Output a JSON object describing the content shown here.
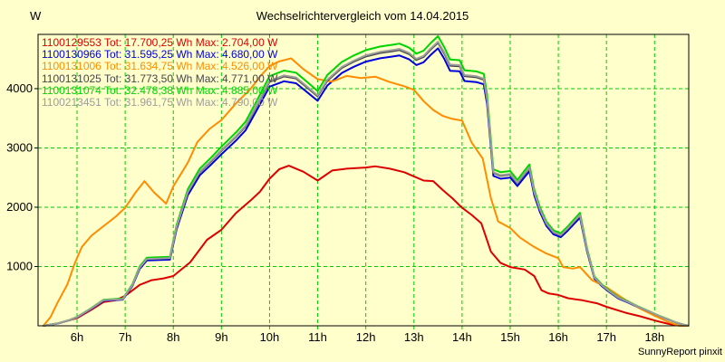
{
  "window": {
    "title": "Wechselrichtervergleich vom 14.04.2015",
    "footer_credit": "SunnyReport pinxit"
  },
  "colors": {
    "background": "#ffffcc",
    "grid": "#00cc00",
    "axis": "#000000",
    "text": "#000000"
  },
  "chart_data": {
    "type": "line",
    "title": "Wechselrichtervergleich vom 14.04.2015",
    "xlabel": "",
    "ylabel": "W",
    "x_unit": "h",
    "xlim": [
      5.19,
      18.71
    ],
    "ylim": [
      0,
      4915
    ],
    "grid": "dashed",
    "legend_position": "top-left-inside",
    "x_ticks": [
      [
        6,
        "6h"
      ],
      [
        7,
        "7h"
      ],
      [
        8,
        "8h"
      ],
      [
        9,
        "9h"
      ],
      [
        10,
        "10h"
      ],
      [
        11,
        "11h"
      ],
      [
        12,
        "12h"
      ],
      [
        13,
        "13h"
      ],
      [
        14,
        "14h"
      ],
      [
        15,
        "15h"
      ],
      [
        16,
        "16h"
      ],
      [
        17,
        "17h"
      ],
      [
        18,
        "18h"
      ]
    ],
    "y_ticks": [
      [
        1000,
        "1000"
      ],
      [
        2000,
        "2000"
      ],
      [
        3000,
        "3000"
      ],
      [
        4000,
        "4000"
      ]
    ],
    "series": [
      {
        "id": "1100129553",
        "label": "1100129553 Tot: 17.700,25 Wh Max: 2.704,00 W",
        "total_wh": "17.700,25",
        "max_w": "2.704,00",
        "color": "#dd0000",
        "points": [
          [
            5.3,
            0
          ],
          [
            5.6,
            40
          ],
          [
            6.0,
            130
          ],
          [
            6.3,
            270
          ],
          [
            6.55,
            400
          ],
          [
            6.8,
            430
          ],
          [
            7.0,
            505
          ],
          [
            7.3,
            690
          ],
          [
            7.55,
            770
          ],
          [
            7.8,
            800
          ],
          [
            8.0,
            840
          ],
          [
            8.35,
            1070
          ],
          [
            8.7,
            1450
          ],
          [
            9.0,
            1620
          ],
          [
            9.3,
            1900
          ],
          [
            9.6,
            2110
          ],
          [
            9.8,
            2260
          ],
          [
            10.0,
            2480
          ],
          [
            10.2,
            2640
          ],
          [
            10.4,
            2700
          ],
          [
            10.7,
            2600
          ],
          [
            11.0,
            2450
          ],
          [
            11.3,
            2620
          ],
          [
            11.6,
            2650
          ],
          [
            12.0,
            2670
          ],
          [
            12.2,
            2690
          ],
          [
            12.5,
            2650
          ],
          [
            12.8,
            2590
          ],
          [
            13.0,
            2520
          ],
          [
            13.2,
            2450
          ],
          [
            13.4,
            2440
          ],
          [
            13.6,
            2290
          ],
          [
            13.8,
            2150
          ],
          [
            14.0,
            1990
          ],
          [
            14.2,
            1870
          ],
          [
            14.4,
            1730
          ],
          [
            14.6,
            1250
          ],
          [
            14.8,
            1060
          ],
          [
            15.0,
            990
          ],
          [
            15.3,
            950
          ],
          [
            15.5,
            840
          ],
          [
            15.65,
            600
          ],
          [
            15.8,
            545
          ],
          [
            16.0,
            520
          ],
          [
            16.2,
            465
          ],
          [
            16.5,
            430
          ],
          [
            16.8,
            380
          ],
          [
            17.0,
            320
          ],
          [
            17.4,
            220
          ],
          [
            17.7,
            160
          ],
          [
            18.0,
            90
          ],
          [
            18.3,
            30
          ],
          [
            18.5,
            5
          ],
          [
            18.7,
            0
          ]
        ]
      },
      {
        "id": "1100130966",
        "label": "1100130966 Tot: 31.595,25 Wh Max: 4.680,00 W",
        "total_wh": "31.595,25",
        "max_w": "4.680,00",
        "color": "#0000dd",
        "base_id": "1100131074",
        "scale_of_base": 0.958
      },
      {
        "id": "1100131006",
        "label": "1100131006 Tot: 31.634,75 Wh Max: 4.526,00 W",
        "total_wh": "31.634,75",
        "max_w": "4.526,00",
        "color": "#ff8c00",
        "points": [
          [
            5.3,
            0
          ],
          [
            5.45,
            150
          ],
          [
            5.6,
            400
          ],
          [
            5.8,
            700
          ],
          [
            5.95,
            1050
          ],
          [
            6.1,
            1330
          ],
          [
            6.3,
            1520
          ],
          [
            6.55,
            1680
          ],
          [
            6.8,
            1840
          ],
          [
            7.0,
            1990
          ],
          [
            7.2,
            2230
          ],
          [
            7.4,
            2440
          ],
          [
            7.6,
            2250
          ],
          [
            7.85,
            2060
          ],
          [
            8.0,
            2350
          ],
          [
            8.3,
            2750
          ],
          [
            8.5,
            3100
          ],
          [
            8.75,
            3320
          ],
          [
            9.0,
            3470
          ],
          [
            9.3,
            3750
          ],
          [
            9.6,
            3990
          ],
          [
            9.8,
            4200
          ],
          [
            10.0,
            4380
          ],
          [
            10.2,
            4460
          ],
          [
            10.45,
            4510
          ],
          [
            10.7,
            4330
          ],
          [
            11.0,
            4160
          ],
          [
            11.3,
            4120
          ],
          [
            11.6,
            4215
          ],
          [
            11.9,
            4180
          ],
          [
            12.2,
            4200
          ],
          [
            12.5,
            4110
          ],
          [
            12.8,
            4040
          ],
          [
            13.0,
            3980
          ],
          [
            13.2,
            3790
          ],
          [
            13.4,
            3640
          ],
          [
            13.6,
            3540
          ],
          [
            13.8,
            3490
          ],
          [
            14.0,
            3460
          ],
          [
            14.2,
            3090
          ],
          [
            14.43,
            2820
          ],
          [
            14.6,
            2150
          ],
          [
            14.75,
            1760
          ],
          [
            15.0,
            1650
          ],
          [
            15.2,
            1490
          ],
          [
            15.5,
            1330
          ],
          [
            15.75,
            1220
          ],
          [
            16.0,
            1140
          ],
          [
            16.1,
            990
          ],
          [
            16.3,
            965
          ],
          [
            16.45,
            990
          ],
          [
            16.7,
            770
          ],
          [
            17.0,
            650
          ],
          [
            17.35,
            460
          ],
          [
            17.7,
            290
          ],
          [
            18.0,
            170
          ],
          [
            18.3,
            60
          ],
          [
            18.5,
            5
          ],
          [
            18.7,
            0
          ]
        ]
      },
      {
        "id": "1100131025",
        "label": "1100131025 Tot: 31.773,50 Wh Max: 4.771,00 W",
        "total_wh": "31.773,50",
        "max_w": "4.771,00",
        "color": "#45454d",
        "base_id": "1100131074",
        "scale_of_base": 0.977
      },
      {
        "id": "1100131074",
        "label": "1100131074 Tot: 32.478,38 Wh Max: 4.885,00 W",
        "total_wh": "32.478,38",
        "max_w": "4.885,00",
        "color": "#00d400",
        "points": [
          [
            5.3,
            0
          ],
          [
            5.6,
            40
          ],
          [
            5.85,
            100
          ],
          [
            6.0,
            150
          ],
          [
            6.3,
            300
          ],
          [
            6.55,
            440
          ],
          [
            6.95,
            460
          ],
          [
            7.15,
            700
          ],
          [
            7.3,
            1000
          ],
          [
            7.45,
            1150
          ],
          [
            7.93,
            1165
          ],
          [
            8.07,
            1700
          ],
          [
            8.3,
            2300
          ],
          [
            8.55,
            2650
          ],
          [
            8.8,
            2850
          ],
          [
            9.0,
            3020
          ],
          [
            9.3,
            3260
          ],
          [
            9.5,
            3440
          ],
          [
            9.75,
            3820
          ],
          [
            10.0,
            4210
          ],
          [
            10.3,
            4305
          ],
          [
            10.55,
            4270
          ],
          [
            10.8,
            4100
          ],
          [
            11.0,
            3960
          ],
          [
            11.2,
            4230
          ],
          [
            11.5,
            4450
          ],
          [
            11.75,
            4560
          ],
          [
            12.0,
            4650
          ],
          [
            12.3,
            4710
          ],
          [
            12.55,
            4740
          ],
          [
            12.7,
            4760
          ],
          [
            12.9,
            4690
          ],
          [
            13.05,
            4590
          ],
          [
            13.2,
            4640
          ],
          [
            13.35,
            4770
          ],
          [
            13.5,
            4885
          ],
          [
            13.63,
            4700
          ],
          [
            13.75,
            4490
          ],
          [
            13.95,
            4480
          ],
          [
            14.05,
            4310
          ],
          [
            14.3,
            4290
          ],
          [
            14.45,
            4250
          ],
          [
            14.52,
            3900
          ],
          [
            14.65,
            2640
          ],
          [
            14.8,
            2590
          ],
          [
            15.0,
            2610
          ],
          [
            15.15,
            2460
          ],
          [
            15.3,
            2620
          ],
          [
            15.4,
            2720
          ],
          [
            15.5,
            2300
          ],
          [
            15.62,
            2000
          ],
          [
            15.75,
            1760
          ],
          [
            15.9,
            1610
          ],
          [
            16.05,
            1560
          ],
          [
            16.2,
            1680
          ],
          [
            16.45,
            1905
          ],
          [
            16.6,
            1300
          ],
          [
            16.75,
            830
          ],
          [
            16.9,
            700
          ],
          [
            17.05,
            600
          ],
          [
            17.25,
            480
          ],
          [
            17.45,
            410
          ],
          [
            17.65,
            330
          ],
          [
            17.85,
            260
          ],
          [
            18.05,
            185
          ],
          [
            18.25,
            120
          ],
          [
            18.45,
            55
          ],
          [
            18.6,
            20
          ],
          [
            18.7,
            0
          ]
        ]
      },
      {
        "id": "1100213451",
        "label": "1100213451 Tot: 31.961,75 Wh Max: 4.790,00 W",
        "total_wh": "31.961,75",
        "max_w": "4.790,00",
        "color": "#9c9c9c",
        "base_id": "1100131074",
        "scale_of_base": 0.981
      }
    ]
  }
}
